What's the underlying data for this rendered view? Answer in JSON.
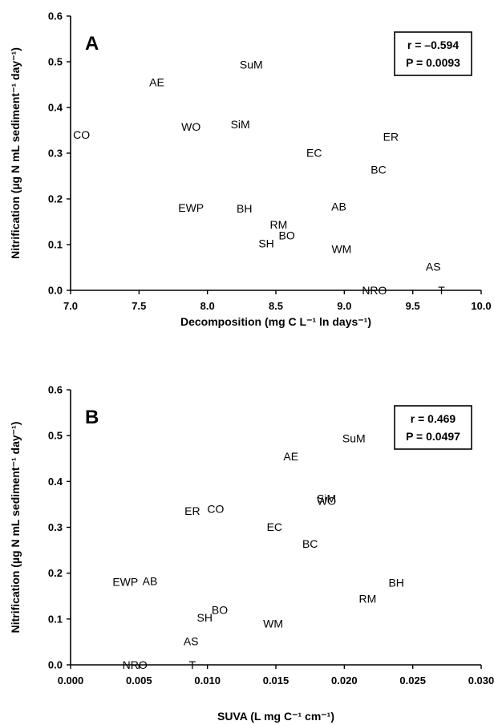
{
  "chart_data": [
    {
      "type": "scatter",
      "panel_label": "A",
      "xlabel": "Decomposition (mg C L⁻¹ ln days⁻¹)",
      "ylabel": "Nitrification (µg N mL sediment⁻¹ day⁻¹)",
      "xlim": [
        7.0,
        10.0
      ],
      "ylim": [
        0.0,
        0.6
      ],
      "xticks": [
        "7.0",
        "7.5",
        "8.0",
        "8.5",
        "9.0",
        "9.5",
        "10.0"
      ],
      "yticks": [
        "0.0",
        "0.1",
        "0.2",
        "0.3",
        "0.4",
        "0.5",
        "0.6"
      ],
      "grid": false,
      "stats": {
        "r": "r = –0.594",
        "p": "P = 0.0093"
      },
      "points": [
        {
          "label": "SuM",
          "x": 8.32,
          "y": 0.494
        },
        {
          "label": "AE",
          "x": 7.63,
          "y": 0.455
        },
        {
          "label": "CO",
          "x": 7.08,
          "y": 0.34
        },
        {
          "label": "WO",
          "x": 7.88,
          "y": 0.358
        },
        {
          "label": "SiM",
          "x": 8.24,
          "y": 0.363
        },
        {
          "label": "ER",
          "x": 9.34,
          "y": 0.336
        },
        {
          "label": "EC",
          "x": 8.78,
          "y": 0.301
        },
        {
          "label": "BC",
          "x": 9.25,
          "y": 0.264
        },
        {
          "label": "EWP",
          "x": 7.88,
          "y": 0.181
        },
        {
          "label": "BH",
          "x": 8.27,
          "y": 0.179
        },
        {
          "label": "AB",
          "x": 8.96,
          "y": 0.183
        },
        {
          "label": "RM",
          "x": 8.52,
          "y": 0.144
        },
        {
          "label": "BO",
          "x": 8.58,
          "y": 0.12
        },
        {
          "label": "SH",
          "x": 8.43,
          "y": 0.103
        },
        {
          "label": "WM",
          "x": 8.98,
          "y": 0.09
        },
        {
          "label": "AS",
          "x": 9.65,
          "y": 0.052
        },
        {
          "label": "NRO",
          "x": 9.22,
          "y": 0.0
        },
        {
          "label": "T",
          "x": 9.71,
          "y": 0.0
        }
      ]
    },
    {
      "type": "scatter",
      "panel_label": "B",
      "xlabel": "SUVA (L mg C⁻¹ cm⁻¹)",
      "ylabel": "Nitrification (µg N mL sediment⁻¹ day⁻¹)",
      "xlim": [
        0.0,
        0.03
      ],
      "ylim": [
        0.0,
        0.6
      ],
      "xticks": [
        "0.000",
        "0.005",
        "0.010",
        "0.015",
        "0.020",
        "0.025",
        "0.030"
      ],
      "yticks": [
        "0.0",
        "0.1",
        "0.2",
        "0.3",
        "0.4",
        "0.5",
        "0.6"
      ],
      "grid": false,
      "stats": {
        "r": "r = 0.469",
        "p": "P = 0.0497"
      },
      "points": [
        {
          "label": "SuM",
          "x": 0.0207,
          "y": 0.494
        },
        {
          "label": "AE",
          "x": 0.0161,
          "y": 0.455
        },
        {
          "label": "SiM",
          "x": 0.0187,
          "y": 0.363
        },
        {
          "label": "WO",
          "x": 0.0187,
          "y": 0.358
        },
        {
          "label": "ER",
          "x": 0.0089,
          "y": 0.336
        },
        {
          "label": "CO",
          "x": 0.0106,
          "y": 0.34
        },
        {
          "label": "EC",
          "x": 0.0149,
          "y": 0.301
        },
        {
          "label": "BC",
          "x": 0.0175,
          "y": 0.264
        },
        {
          "label": "EWP",
          "x": 0.004,
          "y": 0.181
        },
        {
          "label": "AB",
          "x": 0.0058,
          "y": 0.183
        },
        {
          "label": "BH",
          "x": 0.0238,
          "y": 0.179
        },
        {
          "label": "RM",
          "x": 0.0217,
          "y": 0.144
        },
        {
          "label": "BO",
          "x": 0.0109,
          "y": 0.12
        },
        {
          "label": "SH",
          "x": 0.0098,
          "y": 0.103
        },
        {
          "label": "WM",
          "x": 0.0148,
          "y": 0.09
        },
        {
          "label": "AS",
          "x": 0.0088,
          "y": 0.052
        },
        {
          "label": "NRO",
          "x": 0.0047,
          "y": 0.0
        },
        {
          "label": "T",
          "x": 0.0089,
          "y": 0.0
        }
      ]
    }
  ]
}
